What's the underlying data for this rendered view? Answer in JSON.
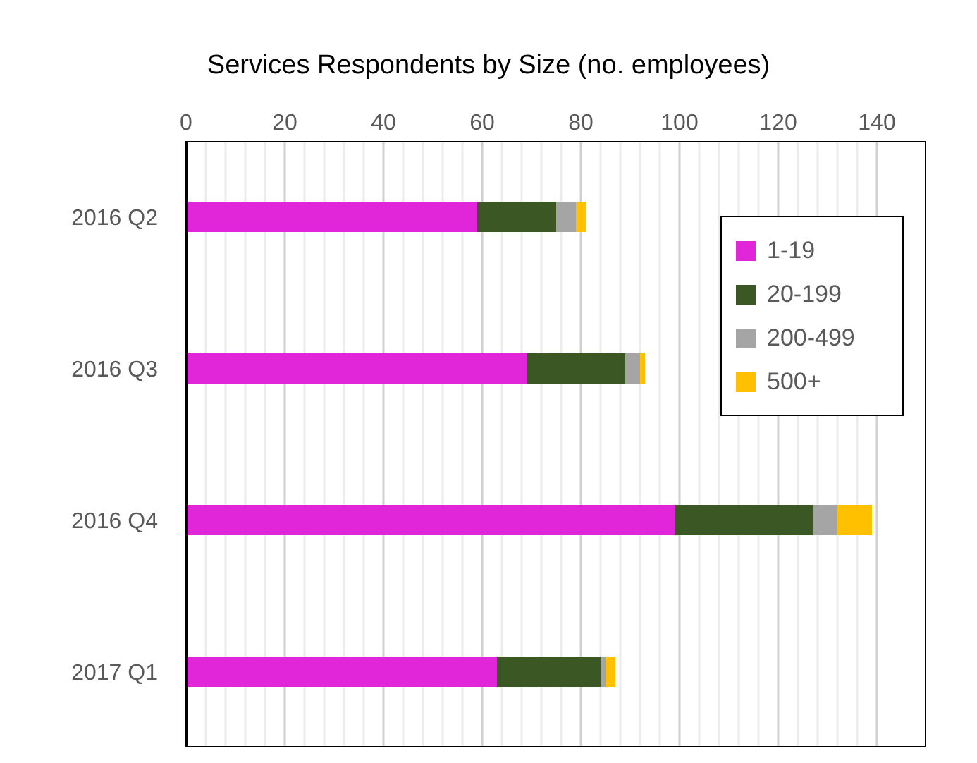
{
  "chart_data": {
    "type": "bar",
    "orientation": "horizontal",
    "stacked": true,
    "title": "Services Respondents by Size (no. employees)",
    "categories": [
      "2016 Q2",
      "2016 Q3",
      "2016 Q4",
      "2017 Q1"
    ],
    "series": [
      {
        "name": "1-19",
        "color": "#e026d8",
        "values": [
          59,
          69,
          99,
          63
        ]
      },
      {
        "name": "20-199",
        "color": "#3b5723",
        "values": [
          16,
          20,
          28,
          21
        ]
      },
      {
        "name": "200-499",
        "color": "#a5a5a5",
        "values": [
          4,
          3,
          5,
          1
        ]
      },
      {
        "name": "500+",
        "color": "#ffc000",
        "values": [
          2,
          1,
          7,
          2
        ]
      }
    ],
    "xlim": [
      0,
      150
    ],
    "xticks": [
      0,
      20,
      40,
      60,
      80,
      100,
      120,
      140
    ],
    "grid": "x",
    "legend": "top right"
  }
}
